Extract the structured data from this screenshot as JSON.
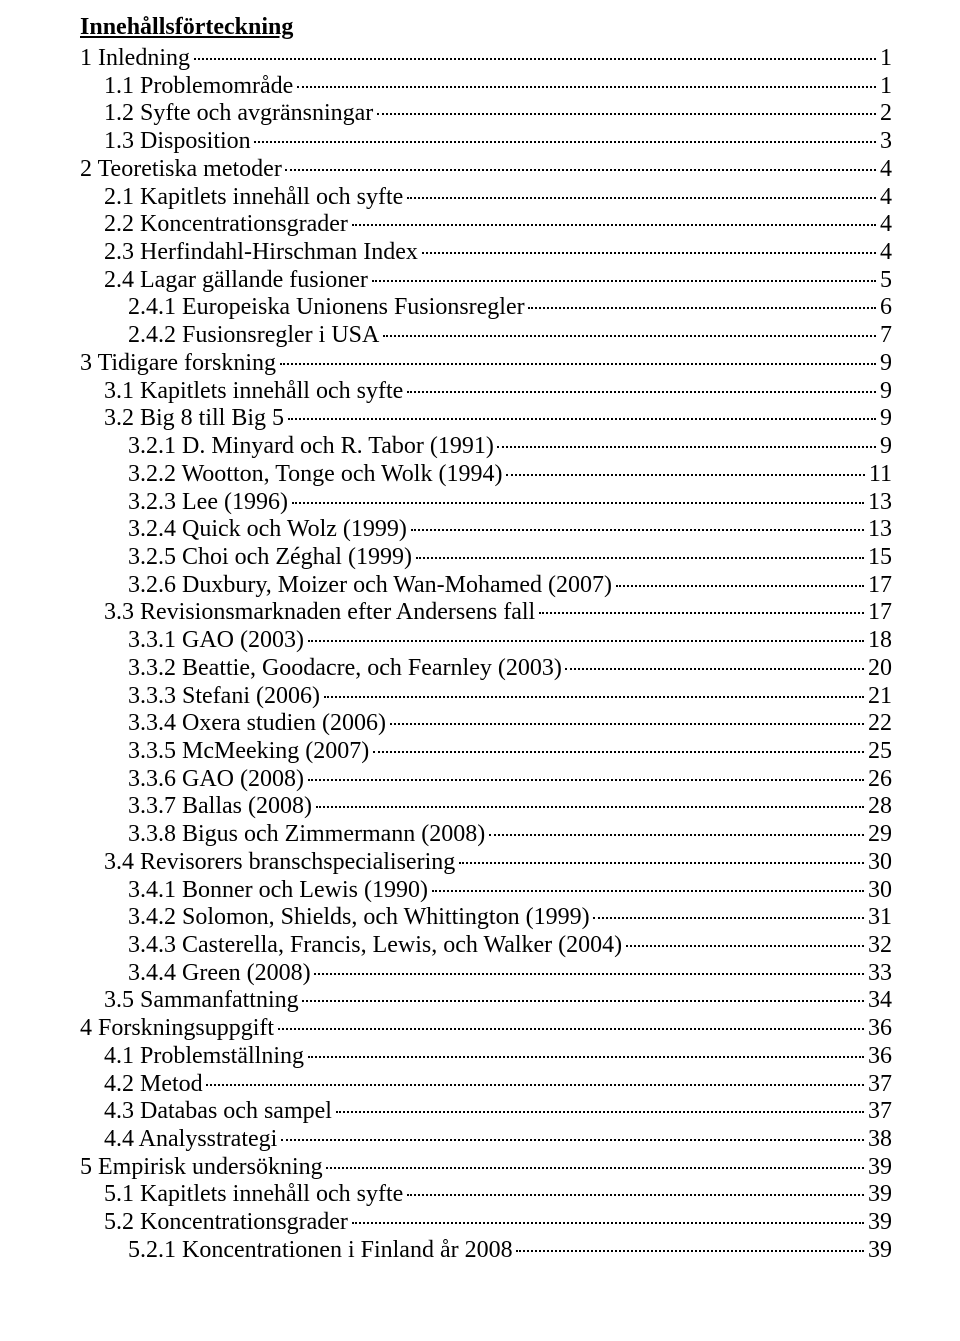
{
  "title": "Innehållsförteckning",
  "entries": [
    {
      "label": "1 Inledning",
      "page": "1",
      "level": 0
    },
    {
      "label": "1.1 Problemområde",
      "page": "1",
      "level": 1
    },
    {
      "label": "1.2 Syfte och avgränsningar",
      "page": "2",
      "level": 1
    },
    {
      "label": "1.3 Disposition",
      "page": "3",
      "level": 1
    },
    {
      "label": "2 Teoretiska metoder",
      "page": "4",
      "level": 0
    },
    {
      "label": "2.1 Kapitlets innehåll och syfte",
      "page": "4",
      "level": 1
    },
    {
      "label": "2.2 Koncentrationsgrader",
      "page": "4",
      "level": 1
    },
    {
      "label": "2.3 Herfindahl-Hirschman Index",
      "page": "4",
      "level": 1
    },
    {
      "label": "2.4 Lagar gällande fusioner",
      "page": "5",
      "level": 1
    },
    {
      "label": "2.4.1 Europeiska Unionens Fusionsregler",
      "page": "6",
      "level": 2
    },
    {
      "label": "2.4.2 Fusionsregler i USA",
      "page": "7",
      "level": 2
    },
    {
      "label": "3 Tidigare forskning",
      "page": "9",
      "level": 0
    },
    {
      "label": "3.1 Kapitlets innehåll och syfte",
      "page": "9",
      "level": 1
    },
    {
      "label": "3.2 Big 8 till Big 5",
      "page": "9",
      "level": 1
    },
    {
      "label": "3.2.1 D. Minyard och R. Tabor (1991)",
      "page": "9",
      "level": 2
    },
    {
      "label": "3.2.2 Wootton, Tonge och Wolk (1994)",
      "page": "11",
      "level": 2
    },
    {
      "label": "3.2.3 Lee (1996)",
      "page": "13",
      "level": 2
    },
    {
      "label": "3.2.4 Quick och Wolz (1999)",
      "page": "13",
      "level": 2
    },
    {
      "label": "3.2.5 Choi och Zéghal (1999)",
      "page": "15",
      "level": 2
    },
    {
      "label": "3.2.6 Duxbury, Moizer och Wan-Mohamed (2007)",
      "page": "17",
      "level": 2
    },
    {
      "label": "3.3 Revisionsmarknaden efter Andersens fall",
      "page": "17",
      "level": 1
    },
    {
      "label": "3.3.1 GAO (2003)",
      "page": "18",
      "level": 2
    },
    {
      "label": "3.3.2 Beattie, Goodacre, och Fearnley (2003)",
      "page": "20",
      "level": 2
    },
    {
      "label": "3.3.3 Stefani (2006)",
      "page": "21",
      "level": 2
    },
    {
      "label": "3.3.4 Oxera studien (2006)",
      "page": "22",
      "level": 2
    },
    {
      "label": "3.3.5 McMeeking (2007)",
      "page": "25",
      "level": 2
    },
    {
      "label": "3.3.6 GAO (2008)",
      "page": "26",
      "level": 2
    },
    {
      "label": "3.3.7 Ballas (2008)",
      "page": "28",
      "level": 2
    },
    {
      "label": "3.3.8 Bigus och Zimmermann (2008)",
      "page": "29",
      "level": 2
    },
    {
      "label": "3.4 Revisorers branschspecialisering",
      "page": "30",
      "level": 1
    },
    {
      "label": "3.4.1 Bonner och Lewis (1990)",
      "page": "30",
      "level": 2
    },
    {
      "label": "3.4.2 Solomon, Shields, och Whittington (1999)",
      "page": "31",
      "level": 2
    },
    {
      "label": "3.4.3 Casterella, Francis, Lewis, och Walker (2004)",
      "page": "32",
      "level": 2
    },
    {
      "label": "3.4.4 Green (2008)",
      "page": "33",
      "level": 2
    },
    {
      "label": "3.5 Sammanfattning",
      "page": "34",
      "level": 1
    },
    {
      "label": "4 Forskningsuppgift",
      "page": "36",
      "level": 0
    },
    {
      "label": "4.1 Problemställning",
      "page": "36",
      "level": 1
    },
    {
      "label": "4.2 Metod",
      "page": "37",
      "level": 1
    },
    {
      "label": "4.3 Databas och sampel",
      "page": "37",
      "level": 1
    },
    {
      "label": "4.4 Analysstrategi",
      "page": "38",
      "level": 1
    },
    {
      "label": "5 Empirisk undersökning",
      "page": "39",
      "level": 0
    },
    {
      "label": "5.1 Kapitlets innehåll och syfte",
      "page": "39",
      "level": 1
    },
    {
      "label": "5.2 Koncentrationsgrader",
      "page": "39",
      "level": 1
    },
    {
      "label": "5.2.1 Koncentrationen i Finland år 2008",
      "page": "39",
      "level": 2
    }
  ]
}
